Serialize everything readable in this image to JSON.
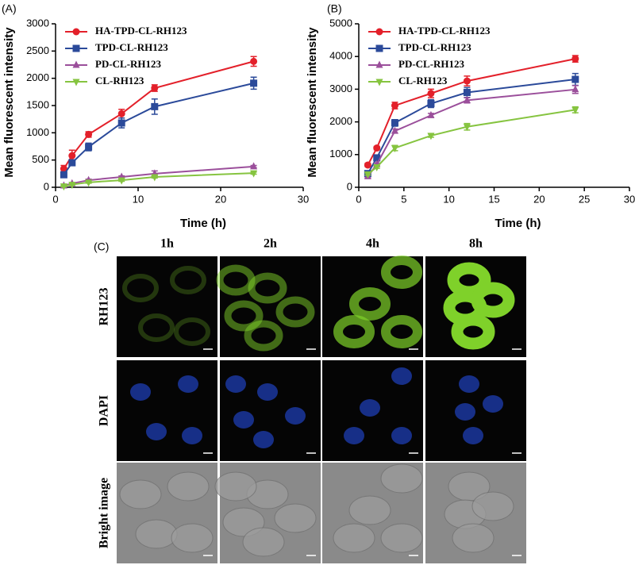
{
  "chart_data": [
    {
      "type": "line",
      "panel_label": "(A)",
      "xlabel": "Time (h)",
      "ylabel": "Mean fluorescent intensity",
      "xlim": [
        0,
        30
      ],
      "xticks": [
        0,
        10,
        20,
        30
      ],
      "ylim": [
        0,
        3000
      ],
      "yticks": [
        0,
        500,
        1000,
        1500,
        2000,
        2500,
        3000
      ],
      "legend": "upper left",
      "x": [
        1,
        2,
        4,
        8,
        12,
        24
      ],
      "series": [
        {
          "name": "HA-TPD-CL-RH123",
          "color": "#e3202a",
          "marker": "circle",
          "values": [
            340,
            580,
            970,
            1350,
            1820,
            2310
          ],
          "errors": [
            60,
            100,
            50,
            80,
            60,
            90
          ]
        },
        {
          "name": "TPD-CL-RH123",
          "color": "#2b4a9a",
          "marker": "square",
          "values": [
            230,
            450,
            740,
            1180,
            1480,
            1910
          ],
          "errors": [
            40,
            50,
            70,
            90,
            140,
            110
          ]
        },
        {
          "name": "PD-CL-RH123",
          "color": "#9b4f9b",
          "marker": "triangle-up",
          "values": [
            30,
            70,
            130,
            190,
            250,
            380
          ],
          "errors": [
            10,
            10,
            20,
            20,
            50,
            20
          ]
        },
        {
          "name": "CL-RH123",
          "color": "#86c440",
          "marker": "triangle-down",
          "values": [
            20,
            50,
            90,
            130,
            190,
            260
          ],
          "errors": [
            10,
            10,
            15,
            20,
            20,
            20
          ]
        }
      ]
    },
    {
      "type": "line",
      "panel_label": "(B)",
      "xlabel": "Time (h)",
      "ylabel": "Mean fluorescent intensity",
      "xlim": [
        0,
        30
      ],
      "xticks": [
        0,
        5,
        10,
        15,
        20,
        25,
        30
      ],
      "ylim": [
        0,
        5000
      ],
      "yticks": [
        0,
        1000,
        2000,
        3000,
        4000,
        5000
      ],
      "legend": "upper left",
      "x": [
        1,
        2,
        4,
        8,
        12,
        24
      ],
      "series": [
        {
          "name": "HA-TPD-CL-RH123",
          "color": "#e3202a",
          "marker": "circle",
          "values": [
            680,
            1200,
            2500,
            2870,
            3250,
            3930
          ],
          "errors": [
            50,
            50,
            100,
            130,
            150,
            100
          ]
        },
        {
          "name": "TPD-CL-RH123",
          "color": "#2b4a9a",
          "marker": "square",
          "values": [
            420,
            900,
            1970,
            2560,
            2900,
            3300
          ],
          "errors": [
            40,
            50,
            100,
            120,
            150,
            180
          ]
        },
        {
          "name": "PD-CL-RH123",
          "color": "#9b4f9b",
          "marker": "triangle-up",
          "values": [
            330,
            700,
            1720,
            2200,
            2660,
            2990
          ],
          "errors": [
            40,
            40,
            60,
            60,
            80,
            120
          ]
        },
        {
          "name": "CL-RH123",
          "color": "#86c440",
          "marker": "triangle-down",
          "values": [
            400,
            620,
            1200,
            1580,
            1850,
            2370
          ],
          "errors": [
            30,
            40,
            80,
            50,
            100,
            90
          ]
        }
      ]
    }
  ],
  "panel_c": {
    "label": "(C)",
    "columns": [
      "1h",
      "2h",
      "4h",
      "8h"
    ],
    "rows": [
      "RH123",
      "DAPI",
      "Bright image"
    ]
  }
}
